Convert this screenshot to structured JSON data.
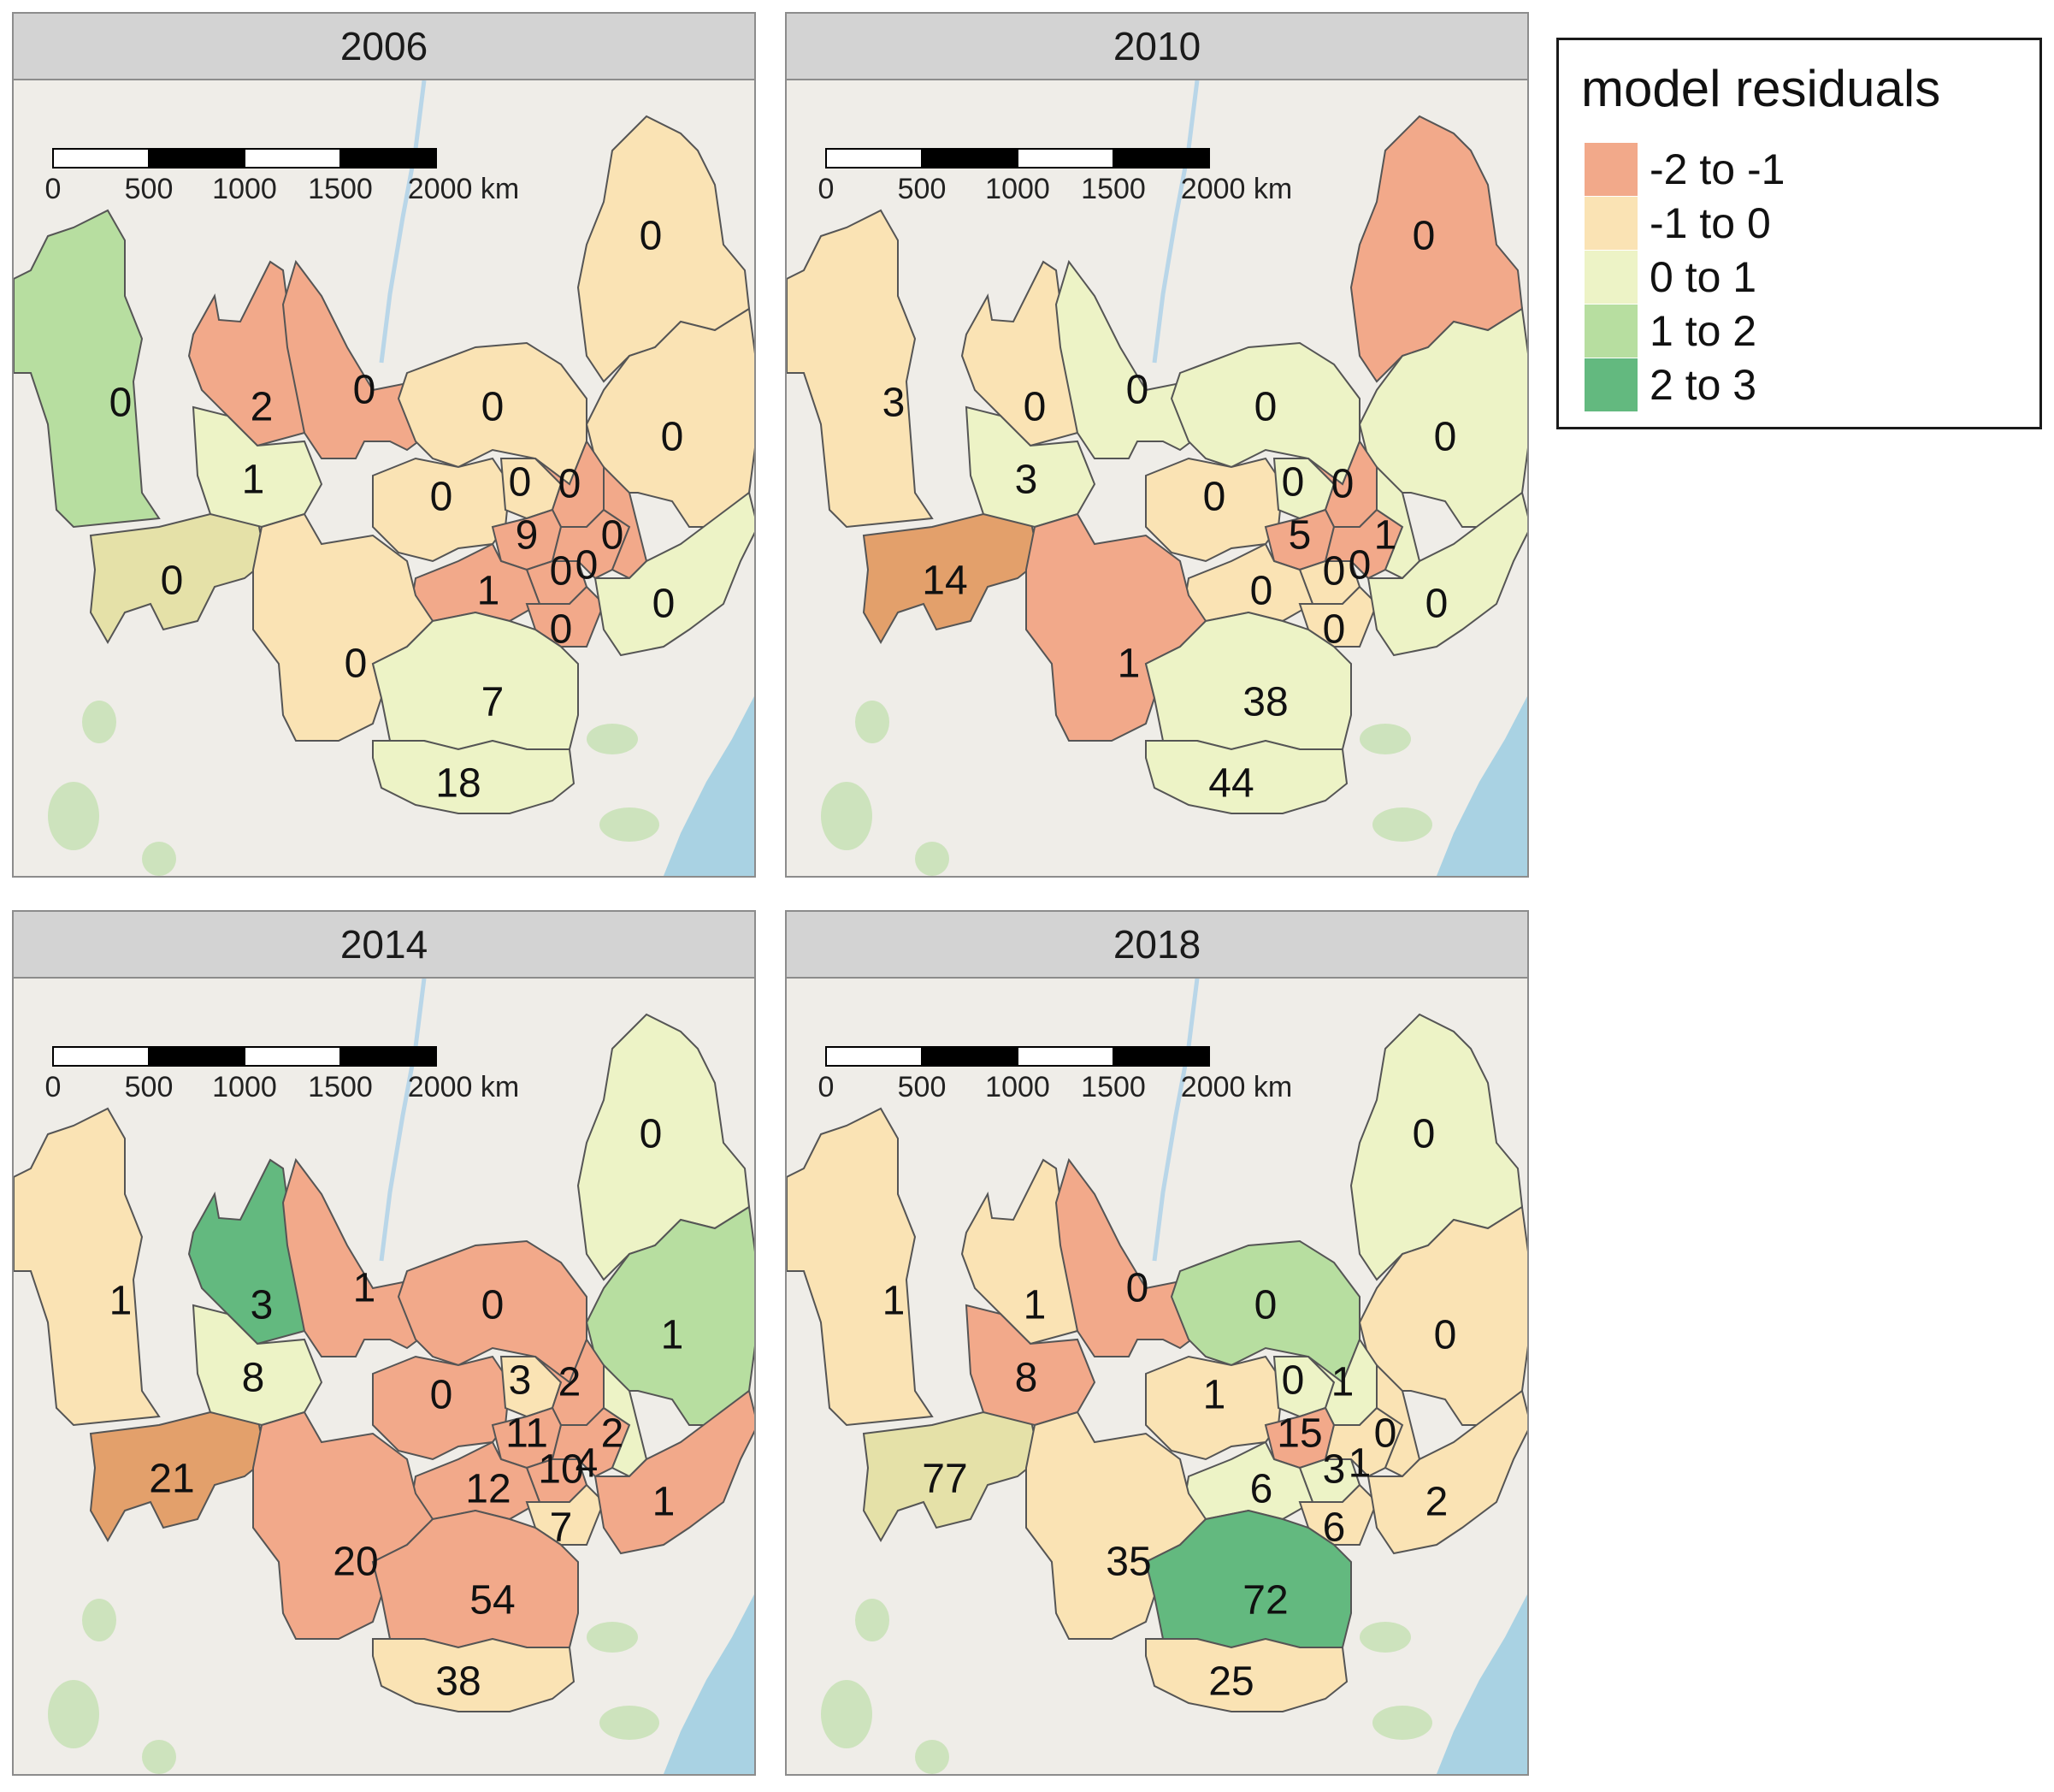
{
  "legend": {
    "title": "model residuals",
    "items": [
      {
        "label": "-2 to -1",
        "color": "#f2a98a"
      },
      {
        "label": "-1 to 0",
        "color": "#fae3b4"
      },
      {
        "label": "0 to 1",
        "color": "#edf3c6"
      },
      {
        "label": "1 to 2",
        "color": "#b7deA0"
      },
      {
        "label": "2 to 3",
        "color": "#63b97f"
      }
    ]
  },
  "scale_bar": {
    "ticks": [
      "0",
      "500",
      "1000",
      "1500",
      "2000 km"
    ]
  },
  "palette": {
    "background": "#efede8",
    "water": "#a9d2e3",
    "river": "#b9d6e8",
    "vegetation": "#cde3bd",
    "olive": "#e5e1a8",
    "dark_orange": "#e3a06b",
    "border": "#555555"
  },
  "panels": [
    {
      "year": "2006",
      "regions": [
        {
          "id": "west",
          "class": 3,
          "label": "0"
        },
        {
          "id": "sw",
          "class": 10,
          "label": "0"
        },
        {
          "id": "nw2",
          "class": 0,
          "label": "2"
        },
        {
          "id": "midw",
          "class": 2,
          "label": "1"
        },
        {
          "id": "river",
          "class": 0,
          "label": "0"
        },
        {
          "id": "ncenter",
          "class": 1,
          "label": "0"
        },
        {
          "id": "ne",
          "class": 1,
          "label": "0"
        },
        {
          "id": "e",
          "class": 1,
          "label": "0"
        },
        {
          "id": "c1",
          "class": 1,
          "label": "0"
        },
        {
          "id": "c2",
          "class": 1,
          "label": "0"
        },
        {
          "id": "c3",
          "class": 0,
          "label": "0"
        },
        {
          "id": "c4",
          "class": 0,
          "label": "9"
        },
        {
          "id": "c5",
          "class": 0,
          "label": "0"
        },
        {
          "id": "c6",
          "class": 0,
          "label": "0"
        },
        {
          "id": "c7",
          "class": 0,
          "label": "0"
        },
        {
          "id": "c8",
          "class": 0,
          "label": "1"
        },
        {
          "id": "c9",
          "class": 0,
          "label": "0"
        },
        {
          "id": "se",
          "class": 2,
          "label": "0"
        },
        {
          "id": "scenter",
          "class": 1,
          "label": "0"
        },
        {
          "id": "s1",
          "class": 2,
          "label": "7"
        },
        {
          "id": "s2",
          "class": 2,
          "label": "18"
        }
      ]
    },
    {
      "year": "2010",
      "regions": [
        {
          "id": "west",
          "class": 1,
          "label": "3"
        },
        {
          "id": "sw",
          "class": 11,
          "label": "14"
        },
        {
          "id": "nw2",
          "class": 1,
          "label": "0"
        },
        {
          "id": "midw",
          "class": 2,
          "label": "3"
        },
        {
          "id": "river",
          "class": 2,
          "label": "0"
        },
        {
          "id": "ncenter",
          "class": 2,
          "label": "0"
        },
        {
          "id": "ne",
          "class": 0,
          "label": "0"
        },
        {
          "id": "e",
          "class": 2,
          "label": "0"
        },
        {
          "id": "c1",
          "class": 1,
          "label": "0"
        },
        {
          "id": "c2",
          "class": 2,
          "label": "0"
        },
        {
          "id": "c3",
          "class": 0,
          "label": "0"
        },
        {
          "id": "c4",
          "class": 0,
          "label": "5"
        },
        {
          "id": "c5",
          "class": 1,
          "label": "0"
        },
        {
          "id": "c6",
          "class": 0,
          "label": "0"
        },
        {
          "id": "c7",
          "class": 2,
          "label": "1"
        },
        {
          "id": "c8",
          "class": 1,
          "label": "0"
        },
        {
          "id": "c9",
          "class": 1,
          "label": "0"
        },
        {
          "id": "se",
          "class": 2,
          "label": "0"
        },
        {
          "id": "scenter",
          "class": 0,
          "label": "1"
        },
        {
          "id": "s1",
          "class": 2,
          "label": "38"
        },
        {
          "id": "s2",
          "class": 2,
          "label": "44"
        }
      ]
    },
    {
      "year": "2014",
      "regions": [
        {
          "id": "west",
          "class": 1,
          "label": "1"
        },
        {
          "id": "sw",
          "class": 11,
          "label": "21"
        },
        {
          "id": "nw2",
          "class": 4,
          "label": "3"
        },
        {
          "id": "midw",
          "class": 2,
          "label": "8"
        },
        {
          "id": "river",
          "class": 0,
          "label": "1"
        },
        {
          "id": "ncenter",
          "class": 0,
          "label": "0"
        },
        {
          "id": "ne",
          "class": 2,
          "label": "0"
        },
        {
          "id": "e",
          "class": 3,
          "label": "1"
        },
        {
          "id": "c1",
          "class": 0,
          "label": "0"
        },
        {
          "id": "c2",
          "class": 1,
          "label": "3"
        },
        {
          "id": "c3",
          "class": 0,
          "label": "2"
        },
        {
          "id": "c4",
          "class": 0,
          "label": "11"
        },
        {
          "id": "c5",
          "class": 0,
          "label": "10"
        },
        {
          "id": "c6",
          "class": 0,
          "label": "4"
        },
        {
          "id": "c7",
          "class": 2,
          "label": "2"
        },
        {
          "id": "c8",
          "class": 0,
          "label": "12"
        },
        {
          "id": "c9",
          "class": 1,
          "label": "7"
        },
        {
          "id": "se",
          "class": 0,
          "label": "1"
        },
        {
          "id": "scenter",
          "class": 0,
          "label": "20"
        },
        {
          "id": "s1",
          "class": 0,
          "label": "54"
        },
        {
          "id": "s2",
          "class": 1,
          "label": "38"
        }
      ]
    },
    {
      "year": "2018",
      "regions": [
        {
          "id": "west",
          "class": 1,
          "label": "1"
        },
        {
          "id": "sw",
          "class": 10,
          "label": "77"
        },
        {
          "id": "nw2",
          "class": 1,
          "label": "1"
        },
        {
          "id": "midw",
          "class": 0,
          "label": "8"
        },
        {
          "id": "river",
          "class": 0,
          "label": "0"
        },
        {
          "id": "ncenter",
          "class": 3,
          "label": "0"
        },
        {
          "id": "ne",
          "class": 2,
          "label": "0"
        },
        {
          "id": "e",
          "class": 1,
          "label": "0"
        },
        {
          "id": "c1",
          "class": 1,
          "label": "1"
        },
        {
          "id": "c2",
          "class": 2,
          "label": "0"
        },
        {
          "id": "c3",
          "class": 2,
          "label": "1"
        },
        {
          "id": "c4",
          "class": 0,
          "label": "15"
        },
        {
          "id": "c5",
          "class": 2,
          "label": "3"
        },
        {
          "id": "c6",
          "class": 1,
          "label": "1"
        },
        {
          "id": "c7",
          "class": 1,
          "label": "0"
        },
        {
          "id": "c8",
          "class": 2,
          "label": "6"
        },
        {
          "id": "c9",
          "class": 1,
          "label": "6"
        },
        {
          "id": "se",
          "class": 1,
          "label": "2"
        },
        {
          "id": "scenter",
          "class": 1,
          "label": "35"
        },
        {
          "id": "s1",
          "class": 4,
          "label": "72"
        },
        {
          "id": "s2",
          "class": 1,
          "label": "25"
        }
      ]
    }
  ]
}
